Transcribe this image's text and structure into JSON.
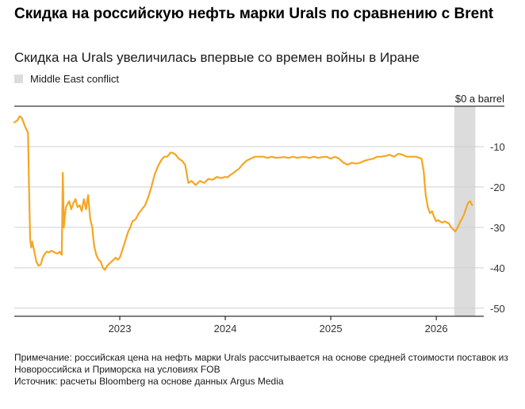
{
  "header": {
    "title": "Скидка на российскую нефть марки Urals по сравнению с Brent",
    "subtitle": "Скидка на Urals увеличилась впервые со времен войны в Иране"
  },
  "legend": {
    "label": "Middle East conflict",
    "swatch_color": "#dcdcdc"
  },
  "footer": {
    "note": "Примечание: российская цена на нефть марки Urals рассчитывается на основе средней стоимости поставок из Новороссийска и Приморска на условиях FOB",
    "source": "Источник: расчеты Bloomberg на основе данных Argus Media"
  },
  "chart_data": {
    "type": "line",
    "title": "Скидка на российскую нефть марки Urals по сравнению с Brent",
    "subtitle": "Скидка на Urals увеличилась впервые со времен войны в Иране",
    "ylabel": "",
    "xlabel": "",
    "zero_label": "$0 a barrel",
    "y_ticks": [
      -10,
      -20,
      -30,
      -40,
      -50
    ],
    "y_tick_labels": [
      "-10",
      "-20",
      "-30",
      "-40",
      "-50"
    ],
    "ylim": [
      -52,
      0
    ],
    "xlim": [
      2022.0,
      2026.45
    ],
    "x_ticks": [
      2023,
      2024,
      2025,
      2026
    ],
    "x_tick_labels": [
      "2023",
      "2024",
      "2025",
      "2026"
    ],
    "grid": true,
    "line_color": "#f5a623",
    "shaded_region": {
      "label": "Middle East conflict",
      "x_start": 2026.17,
      "x_end": 2026.37,
      "color": "#dcdcdc"
    },
    "series": [
      {
        "x": [
          2022.0,
          2022.03,
          2022.05,
          2022.07,
          2022.09,
          2022.11,
          2022.13,
          2022.14,
          2022.15,
          2022.16,
          2022.17,
          2022.19,
          2022.21,
          2022.23,
          2022.25,
          2022.27,
          2022.29,
          2022.31,
          2022.33,
          2022.35,
          2022.37,
          2022.39,
          2022.41,
          2022.43,
          2022.45,
          2022.46,
          2022.47,
          2022.48,
          2022.49,
          2022.5,
          2022.52,
          2022.54,
          2022.56,
          2022.58,
          2022.6,
          2022.62,
          2022.64,
          2022.66,
          2022.68,
          2022.7,
          2022.72,
          2022.74,
          2022.75,
          2022.76,
          2022.78,
          2022.8,
          2022.82,
          2022.84,
          2022.86,
          2022.88,
          2022.9,
          2022.92,
          2022.94,
          2022.96,
          2022.98,
          2023.0,
          2023.02,
          2023.05,
          2023.08,
          2023.1,
          2023.12,
          2023.15,
          2023.18,
          2023.21,
          2023.24,
          2023.27,
          2023.3,
          2023.33,
          2023.36,
          2023.39,
          2023.42,
          2023.45,
          2023.48,
          2023.5,
          2023.53,
          2023.56,
          2023.59,
          2023.62,
          2023.65,
          2023.68,
          2023.72,
          2023.76,
          2023.8,
          2023.84,
          2023.88,
          2023.92,
          2023.96,
          2024.0,
          2024.02,
          2024.05,
          2024.08,
          2024.1,
          2024.13,
          2024.16,
          2024.2,
          2024.24,
          2024.28,
          2024.32,
          2024.36,
          2024.4,
          2024.44,
          2024.48,
          2024.52,
          2024.56,
          2024.6,
          2024.64,
          2024.68,
          2024.72,
          2024.76,
          2024.8,
          2024.84,
          2024.88,
          2024.92,
          2024.96,
          2025.0,
          2025.04,
          2025.08,
          2025.1,
          2025.12,
          2025.16,
          2025.2,
          2025.24,
          2025.28,
          2025.32,
          2025.36,
          2025.4,
          2025.44,
          2025.48,
          2025.52,
          2025.56,
          2025.6,
          2025.64,
          2025.68,
          2025.72,
          2025.76,
          2025.8,
          2025.82,
          2025.84,
          2025.86,
          2025.88,
          2025.9,
          2025.92,
          2025.94,
          2025.96,
          2025.98,
          2026.0,
          2026.02,
          2026.04,
          2026.06,
          2026.08,
          2026.1,
          2026.12,
          2026.14,
          2026.16,
          2026.18,
          2026.2,
          2026.22,
          2026.24,
          2026.26,
          2026.28,
          2026.3,
          2026.32,
          2026.34
        ],
        "y": [
          -4.0,
          -3.5,
          -2.5,
          -2.8,
          -4.2,
          -5.5,
          -6.5,
          -20.0,
          -33.0,
          -35.0,
          -33.5,
          -36.0,
          -38.5,
          -39.5,
          -39.2,
          -37.5,
          -36.5,
          -36.0,
          -36.2,
          -35.8,
          -36.0,
          -36.3,
          -36.5,
          -36.0,
          -36.8,
          -16.5,
          -30.0,
          -27.0,
          -25.0,
          -24.5,
          -23.5,
          -25.5,
          -24.0,
          -23.0,
          -25.0,
          -24.5,
          -26.0,
          -23.0,
          -25.5,
          -22.0,
          -28.0,
          -30.0,
          -33.0,
          -35.0,
          -37.0,
          -38.0,
          -38.5,
          -40.0,
          -40.5,
          -39.5,
          -39.0,
          -38.5,
          -38.0,
          -37.5,
          -38.0,
          -37.5,
          -36.0,
          -33.5,
          -31.0,
          -30.0,
          -28.5,
          -28.0,
          -26.5,
          -25.5,
          -24.5,
          -22.5,
          -20.0,
          -17.0,
          -15.0,
          -13.5,
          -12.5,
          -12.5,
          -11.5,
          -11.5,
          -12.0,
          -13.0,
          -13.5,
          -14.5,
          -19.0,
          -18.5,
          -19.5,
          -18.5,
          -19.0,
          -18.0,
          -18.2,
          -17.5,
          -17.8,
          -17.5,
          -17.6,
          -17.0,
          -16.5,
          -16.0,
          -15.5,
          -14.5,
          -13.5,
          -13.0,
          -12.5,
          -12.5,
          -12.5,
          -12.8,
          -12.5,
          -12.8,
          -12.7,
          -12.6,
          -12.8,
          -12.5,
          -12.8,
          -12.6,
          -12.6,
          -12.8,
          -12.5,
          -12.8,
          -12.6,
          -12.5,
          -13.0,
          -12.5,
          -13.0,
          -13.5,
          -14.0,
          -14.5,
          -14.0,
          -14.2,
          -14.0,
          -13.5,
          -13.2,
          -13.0,
          -12.5,
          -12.5,
          -12.3,
          -12.0,
          -12.5,
          -11.8,
          -12.0,
          -12.5,
          -12.5,
          -12.5,
          -12.6,
          -12.8,
          -13.0,
          -16.0,
          -22.0,
          -25.0,
          -26.5,
          -26.0,
          -27.5,
          -28.5,
          -28.2,
          -28.6,
          -28.8,
          -28.5,
          -28.8,
          -29.0,
          -30.0,
          -30.5,
          -31.0,
          -30.2,
          -29.0,
          -28.0,
          -27.0,
          -25.5,
          -24.0,
          -23.5,
          -24.5
        ]
      }
    ]
  }
}
